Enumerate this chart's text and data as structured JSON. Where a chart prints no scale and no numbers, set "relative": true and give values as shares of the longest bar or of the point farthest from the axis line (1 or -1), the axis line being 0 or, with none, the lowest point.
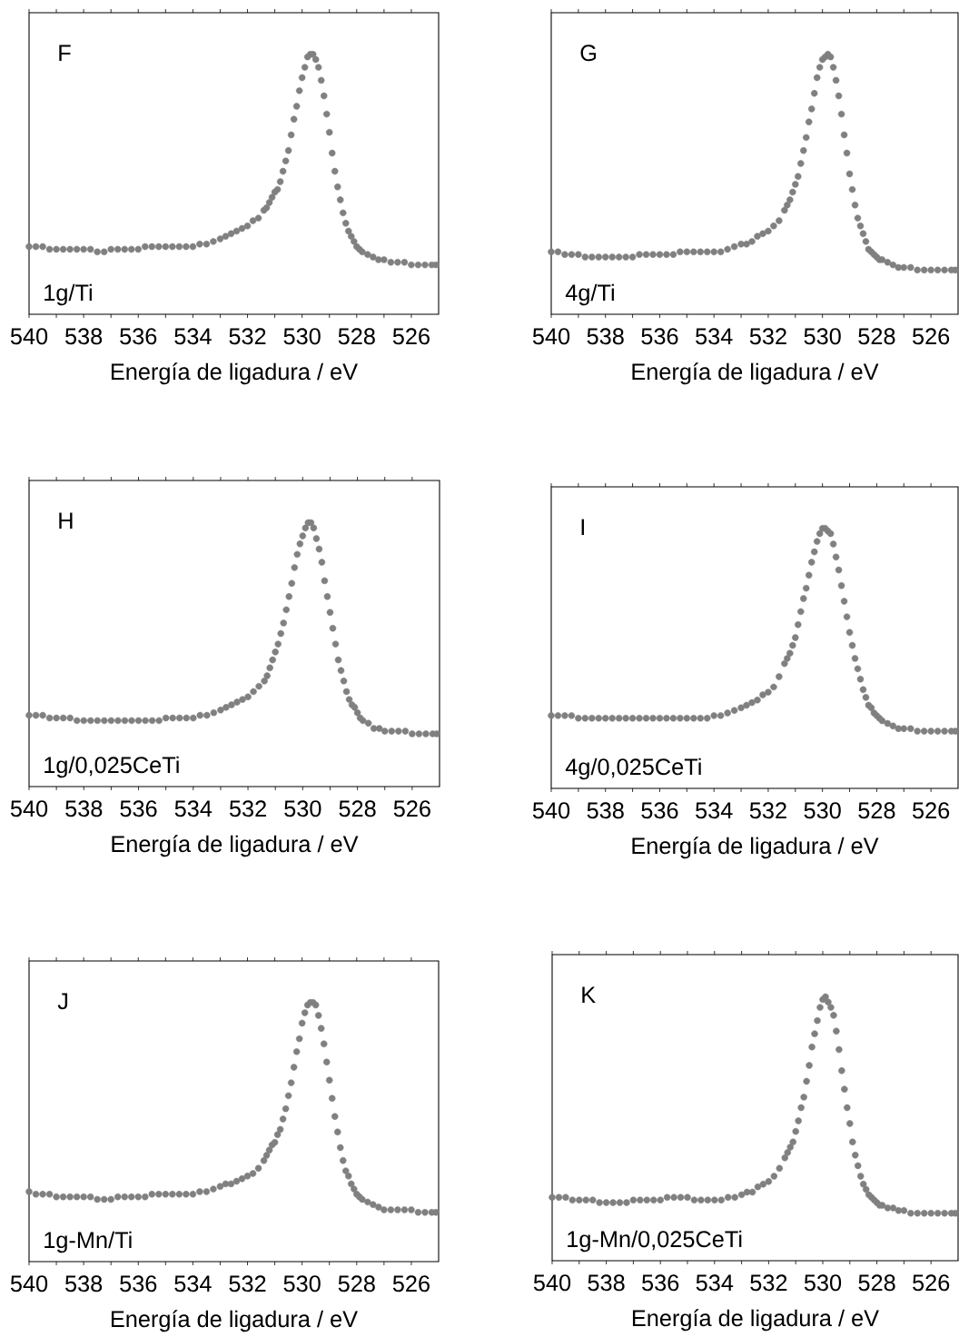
{
  "chart_data": [
    {
      "type": "scatter",
      "title": "F",
      "annotations": [
        "1g/Ti"
      ],
      "xlabel": "Energía de ligadura / eV",
      "relative": true,
      "marker": "circle",
      "color": "#808080",
      "xlim": [
        540,
        525
      ],
      "xticks": [
        540,
        {
          "value": 539,
          "label": null
        },
        538,
        {
          "value": 537,
          "label": null
        },
        536,
        {
          "value": 535,
          "label": null
        },
        534,
        {
          "value": 533,
          "label": null
        },
        532,
        {
          "value": 531,
          "label": null
        },
        530,
        {
          "value": 529,
          "label": null
        },
        528,
        {
          "value": 527,
          "label": null
        },
        526
      ],
      "x": [
        540,
        539.75,
        539.5,
        539.25,
        539,
        538.75,
        538.5,
        538.25,
        538,
        537.75,
        537.5,
        537.25,
        537,
        536.75,
        536.5,
        536.25,
        536,
        535.75,
        535.5,
        535.25,
        535,
        534.75,
        534.5,
        534.25,
        534,
        533.75,
        533.5,
        533.25,
        533,
        532.8,
        532.6,
        532.4,
        532.2,
        532,
        531.8,
        531.6,
        531.4,
        531.3,
        531.2,
        531.1,
        531,
        530.9,
        530.8,
        530.7,
        530.6,
        530.5,
        530.4,
        530.3,
        530.2,
        530.1,
        530,
        529.9,
        529.8,
        529.7,
        529.6,
        529.5,
        529.4,
        529.3,
        529.2,
        529.1,
        529,
        528.9,
        528.8,
        528.7,
        528.6,
        528.5,
        528.4,
        528.3,
        528.2,
        528.1,
        528,
        527.9,
        527.8,
        527.6,
        527.4,
        527.2,
        527,
        526.75,
        526.5,
        526.25,
        526,
        525.75,
        525.5,
        525.25,
        525.1
      ],
      "values": [
        0.26,
        0.26,
        0.26,
        0.25,
        0.25,
        0.25,
        0.25,
        0.25,
        0.25,
        0.25,
        0.24,
        0.24,
        0.25,
        0.25,
        0.25,
        0.25,
        0.25,
        0.26,
        0.26,
        0.26,
        0.26,
        0.26,
        0.26,
        0.26,
        0.26,
        0.27,
        0.27,
        0.28,
        0.29,
        0.3,
        0.31,
        0.32,
        0.33,
        0.34,
        0.36,
        0.37,
        0.4,
        0.41,
        0.43,
        0.45,
        0.47,
        0.48,
        0.51,
        0.55,
        0.59,
        0.63,
        0.69,
        0.75,
        0.8,
        0.86,
        0.91,
        0.95,
        0.99,
        1,
        1,
        0.98,
        0.95,
        0.9,
        0.84,
        0.77,
        0.7,
        0.62,
        0.55,
        0.49,
        0.44,
        0.39,
        0.35,
        0.32,
        0.3,
        0.28,
        0.26,
        0.25,
        0.24,
        0.23,
        0.22,
        0.21,
        0.21,
        0.2,
        0.2,
        0.2,
        0.19,
        0.19,
        0.19,
        0.19,
        0.19
      ]
    },
    {
      "type": "scatter",
      "title": "G",
      "annotations": [
        "4g/Ti"
      ],
      "xlabel": "Energía de ligadura / eV",
      "relative": true,
      "marker": "circle",
      "color": "#808080",
      "xlim": [
        540,
        525
      ],
      "xticks": [
        540,
        {
          "value": 539,
          "label": null
        },
        538,
        {
          "value": 537,
          "label": null
        },
        536,
        {
          "value": 535,
          "label": null
        },
        534,
        {
          "value": 533,
          "label": null
        },
        532,
        {
          "value": 531,
          "label": null
        },
        530,
        {
          "value": 529,
          "label": null
        },
        528,
        {
          "value": 527,
          "label": null
        },
        526
      ],
      "x": [
        540,
        539.75,
        539.5,
        539.25,
        539,
        538.75,
        538.5,
        538.25,
        538,
        537.75,
        537.5,
        537.25,
        537,
        536.75,
        536.5,
        536.25,
        536,
        535.75,
        535.5,
        535.25,
        535,
        534.75,
        534.5,
        534.25,
        534,
        533.75,
        533.5,
        533.25,
        533,
        532.8,
        532.6,
        532.4,
        532.2,
        532,
        531.8,
        531.6,
        531.4,
        531.3,
        531.2,
        531.1,
        531,
        530.9,
        530.8,
        530.7,
        530.6,
        530.5,
        530.4,
        530.3,
        530.2,
        530.1,
        530,
        529.9,
        529.8,
        529.7,
        529.6,
        529.5,
        529.4,
        529.3,
        529.2,
        529.1,
        529,
        528.9,
        528.8,
        528.7,
        528.6,
        528.5,
        528.4,
        528.3,
        528.2,
        528.1,
        528,
        527.9,
        527.8,
        527.6,
        527.4,
        527.2,
        527,
        526.75,
        526.5,
        526.25,
        526,
        525.75,
        525.5,
        525.25,
        525.1
      ],
      "values": [
        0.24,
        0.24,
        0.23,
        0.23,
        0.23,
        0.22,
        0.22,
        0.22,
        0.22,
        0.22,
        0.22,
        0.22,
        0.22,
        0.23,
        0.23,
        0.23,
        0.23,
        0.23,
        0.23,
        0.24,
        0.24,
        0.24,
        0.24,
        0.24,
        0.24,
        0.24,
        0.25,
        0.26,
        0.27,
        0.27,
        0.28,
        0.3,
        0.31,
        0.32,
        0.34,
        0.36,
        0.4,
        0.42,
        0.44,
        0.47,
        0.5,
        0.53,
        0.58,
        0.63,
        0.68,
        0.74,
        0.79,
        0.85,
        0.91,
        0.95,
        0.98,
        0.99,
        1,
        0.99,
        0.95,
        0.9,
        0.84,
        0.77,
        0.69,
        0.62,
        0.54,
        0.48,
        0.42,
        0.37,
        0.34,
        0.31,
        0.28,
        0.25,
        0.24,
        0.23,
        0.22,
        0.21,
        0.21,
        0.2,
        0.19,
        0.18,
        0.18,
        0.18,
        0.17,
        0.17,
        0.17,
        0.17,
        0.17,
        0.17,
        0.17
      ]
    },
    {
      "type": "scatter",
      "title": "H",
      "annotations": [
        "1g/0,025CeTi"
      ],
      "xlabel": "Energía de ligadura / eV",
      "relative": true,
      "marker": "circle",
      "color": "#808080",
      "xlim": [
        540,
        525
      ],
      "xticks": [
        540,
        {
          "value": 539,
          "label": null
        },
        538,
        {
          "value": 537,
          "label": null
        },
        536,
        {
          "value": 535,
          "label": null
        },
        534,
        {
          "value": 533,
          "label": null
        },
        532,
        {
          "value": 531,
          "label": null
        },
        530,
        {
          "value": 529,
          "label": null
        },
        528,
        {
          "value": 527,
          "label": null
        },
        526
      ],
      "x": [
        540,
        539.75,
        539.5,
        539.25,
        539,
        538.75,
        538.5,
        538.25,
        538,
        537.75,
        537.5,
        537.25,
        537,
        536.75,
        536.5,
        536.25,
        536,
        535.75,
        535.5,
        535.25,
        535,
        534.75,
        534.5,
        534.25,
        534,
        533.75,
        533.5,
        533.25,
        533,
        532.8,
        532.6,
        532.4,
        532.2,
        532,
        531.8,
        531.6,
        531.4,
        531.3,
        531.2,
        531.1,
        531,
        530.9,
        530.8,
        530.7,
        530.6,
        530.5,
        530.4,
        530.3,
        530.2,
        530.1,
        530,
        529.9,
        529.8,
        529.7,
        529.6,
        529.5,
        529.4,
        529.3,
        529.2,
        529.1,
        529,
        528.9,
        528.8,
        528.7,
        528.6,
        528.5,
        528.4,
        528.3,
        528.2,
        528.1,
        528,
        527.9,
        527.8,
        527.6,
        527.4,
        527.2,
        527,
        526.75,
        526.5,
        526.25,
        526,
        525.75,
        525.5,
        525.25,
        525.1
      ],
      "values": [
        0.27,
        0.27,
        0.27,
        0.26,
        0.26,
        0.26,
        0.26,
        0.25,
        0.25,
        0.25,
        0.25,
        0.25,
        0.25,
        0.25,
        0.25,
        0.25,
        0.25,
        0.25,
        0.25,
        0.25,
        0.26,
        0.26,
        0.26,
        0.26,
        0.26,
        0.27,
        0.27,
        0.28,
        0.29,
        0.3,
        0.31,
        0.32,
        0.33,
        0.34,
        0.36,
        0.38,
        0.4,
        0.42,
        0.45,
        0.48,
        0.51,
        0.54,
        0.58,
        0.62,
        0.67,
        0.72,
        0.77,
        0.83,
        0.88,
        0.92,
        0.95,
        0.98,
        1,
        1,
        0.98,
        0.94,
        0.9,
        0.85,
        0.78,
        0.72,
        0.66,
        0.6,
        0.54,
        0.48,
        0.44,
        0.4,
        0.36,
        0.33,
        0.31,
        0.3,
        0.28,
        0.26,
        0.25,
        0.24,
        0.22,
        0.22,
        0.21,
        0.21,
        0.21,
        0.21,
        0.2,
        0.2,
        0.2,
        0.2,
        0.2
      ]
    },
    {
      "type": "scatter",
      "title": "I",
      "annotations": [
        "4g/0,025CeTi"
      ],
      "xlabel": "Energía de ligadura / eV",
      "relative": true,
      "marker": "circle",
      "color": "#808080",
      "xlim": [
        540,
        525
      ],
      "xticks": [
        540,
        {
          "value": 539,
          "label": null
        },
        538,
        {
          "value": 537,
          "label": null
        },
        536,
        {
          "value": 535,
          "label": null
        },
        534,
        {
          "value": 533,
          "label": null
        },
        532,
        {
          "value": 531,
          "label": null
        },
        530,
        {
          "value": 529,
          "label": null
        },
        528,
        {
          "value": 527,
          "label": null
        },
        526
      ],
      "x": [
        540,
        539.75,
        539.5,
        539.25,
        539,
        538.75,
        538.5,
        538.25,
        538,
        537.75,
        537.5,
        537.25,
        537,
        536.75,
        536.5,
        536.25,
        536,
        535.75,
        535.5,
        535.25,
        535,
        534.75,
        534.5,
        534.25,
        534,
        533.75,
        533.5,
        533.25,
        533,
        532.8,
        532.6,
        532.4,
        532.2,
        532,
        531.8,
        531.6,
        531.4,
        531.3,
        531.2,
        531.1,
        531,
        530.9,
        530.8,
        530.7,
        530.6,
        530.5,
        530.4,
        530.3,
        530.2,
        530.1,
        530,
        529.9,
        529.8,
        529.7,
        529.6,
        529.5,
        529.4,
        529.3,
        529.2,
        529.1,
        529,
        528.9,
        528.8,
        528.7,
        528.6,
        528.5,
        528.4,
        528.3,
        528.2,
        528.1,
        528,
        527.9,
        527.8,
        527.6,
        527.4,
        527.2,
        527,
        526.75,
        526.5,
        526.25,
        526,
        525.75,
        525.5,
        525.25,
        525.1
      ],
      "values": [
        0.28,
        0.28,
        0.28,
        0.28,
        0.27,
        0.27,
        0.27,
        0.27,
        0.27,
        0.27,
        0.27,
        0.27,
        0.27,
        0.27,
        0.27,
        0.27,
        0.27,
        0.27,
        0.27,
        0.27,
        0.27,
        0.27,
        0.27,
        0.27,
        0.28,
        0.28,
        0.29,
        0.3,
        0.31,
        0.32,
        0.33,
        0.34,
        0.36,
        0.37,
        0.39,
        0.43,
        0.48,
        0.5,
        0.52,
        0.55,
        0.58,
        0.63,
        0.68,
        0.73,
        0.77,
        0.82,
        0.87,
        0.91,
        0.95,
        0.98,
        1,
        1,
        0.99,
        0.98,
        0.94,
        0.89,
        0.84,
        0.78,
        0.72,
        0.66,
        0.6,
        0.55,
        0.5,
        0.46,
        0.42,
        0.38,
        0.35,
        0.32,
        0.31,
        0.29,
        0.28,
        0.27,
        0.26,
        0.25,
        0.24,
        0.23,
        0.23,
        0.23,
        0.22,
        0.22,
        0.22,
        0.22,
        0.22,
        0.22,
        0.22
      ]
    },
    {
      "type": "scatter",
      "title": "J",
      "annotations": [
        "1g-Mn/Ti"
      ],
      "xlabel": "Energía de ligadura / eV",
      "relative": true,
      "marker": "circle",
      "color": "#808080",
      "xlim": [
        540,
        525
      ],
      "xticks": [
        540,
        {
          "value": 539,
          "label": null
        },
        538,
        {
          "value": 537,
          "label": null
        },
        536,
        {
          "value": 535,
          "label": null
        },
        534,
        {
          "value": 533,
          "label": null
        },
        532,
        {
          "value": 531,
          "label": null
        },
        530,
        {
          "value": 529,
          "label": null
        },
        528,
        {
          "value": 527,
          "label": null
        },
        526
      ],
      "x": [
        540,
        539.75,
        539.5,
        539.25,
        539,
        538.75,
        538.5,
        538.25,
        538,
        537.75,
        537.5,
        537.25,
        537,
        536.75,
        536.5,
        536.25,
        536,
        535.75,
        535.5,
        535.25,
        535,
        534.75,
        534.5,
        534.25,
        534,
        533.75,
        533.5,
        533.25,
        533,
        532.8,
        532.6,
        532.4,
        532.2,
        532,
        531.8,
        531.6,
        531.4,
        531.3,
        531.2,
        531.1,
        531,
        530.9,
        530.8,
        530.7,
        530.6,
        530.5,
        530.4,
        530.3,
        530.2,
        530.1,
        530,
        529.9,
        529.8,
        529.7,
        529.6,
        529.5,
        529.4,
        529.3,
        529.2,
        529.1,
        529,
        528.9,
        528.8,
        528.7,
        528.6,
        528.5,
        528.4,
        528.3,
        528.2,
        528.1,
        528,
        527.9,
        527.8,
        527.6,
        527.4,
        527.2,
        527,
        526.75,
        526.5,
        526.25,
        526,
        525.75,
        525.5,
        525.25,
        525.1
      ],
      "values": [
        0.27,
        0.26,
        0.26,
        0.26,
        0.25,
        0.25,
        0.25,
        0.25,
        0.25,
        0.25,
        0.24,
        0.24,
        0.24,
        0.25,
        0.25,
        0.25,
        0.25,
        0.25,
        0.26,
        0.26,
        0.26,
        0.26,
        0.26,
        0.26,
        0.26,
        0.27,
        0.27,
        0.28,
        0.29,
        0.3,
        0.3,
        0.31,
        0.32,
        0.33,
        0.34,
        0.36,
        0.39,
        0.41,
        0.43,
        0.45,
        0.46,
        0.49,
        0.51,
        0.55,
        0.59,
        0.64,
        0.69,
        0.75,
        0.81,
        0.86,
        0.92,
        0.96,
        0.99,
        1,
        1,
        0.99,
        0.95,
        0.9,
        0.84,
        0.77,
        0.7,
        0.63,
        0.56,
        0.5,
        0.44,
        0.39,
        0.35,
        0.33,
        0.3,
        0.28,
        0.26,
        0.25,
        0.24,
        0.23,
        0.22,
        0.21,
        0.2,
        0.2,
        0.2,
        0.2,
        0.2,
        0.19,
        0.19,
        0.19,
        0.19
      ]
    },
    {
      "type": "scatter",
      "title": "K",
      "annotations": [
        "1g-Mn/0,025CeTi"
      ],
      "xlabel": "Energía de ligadura / eV",
      "relative": true,
      "marker": "circle",
      "color": "#808080",
      "xlim": [
        540,
        525
      ],
      "xticks": [
        540,
        {
          "value": 539,
          "label": null
        },
        538,
        {
          "value": 537,
          "label": null
        },
        536,
        {
          "value": 535,
          "label": null
        },
        534,
        {
          "value": 533,
          "label": null
        },
        532,
        {
          "value": 531,
          "label": null
        },
        530,
        {
          "value": 529,
          "label": null
        },
        528,
        {
          "value": 527,
          "label": null
        },
        526
      ],
      "x": [
        540,
        539.75,
        539.5,
        539.25,
        539,
        538.75,
        538.5,
        538.25,
        538,
        537.75,
        537.5,
        537.25,
        537,
        536.75,
        536.5,
        536.25,
        536,
        535.75,
        535.5,
        535.25,
        535,
        534.75,
        534.5,
        534.25,
        534,
        533.75,
        533.5,
        533.25,
        533,
        532.8,
        532.6,
        532.4,
        532.2,
        532,
        531.8,
        531.6,
        531.4,
        531.3,
        531.2,
        531.1,
        531,
        530.9,
        530.8,
        530.7,
        530.6,
        530.5,
        530.4,
        530.3,
        530.2,
        530.1,
        530,
        529.9,
        529.8,
        529.7,
        529.6,
        529.5,
        529.4,
        529.3,
        529.2,
        529.1,
        529,
        528.9,
        528.8,
        528.7,
        528.6,
        528.5,
        528.4,
        528.3,
        528.2,
        528.1,
        528,
        527.9,
        527.8,
        527.6,
        527.4,
        527.2,
        527,
        526.75,
        526.5,
        526.25,
        526,
        525.75,
        525.5,
        525.25,
        525.1
      ],
      "values": [
        0.24,
        0.24,
        0.24,
        0.23,
        0.23,
        0.23,
        0.23,
        0.22,
        0.22,
        0.22,
        0.22,
        0.22,
        0.23,
        0.23,
        0.23,
        0.23,
        0.23,
        0.24,
        0.24,
        0.24,
        0.24,
        0.23,
        0.23,
        0.23,
        0.23,
        0.23,
        0.24,
        0.24,
        0.25,
        0.26,
        0.26,
        0.28,
        0.29,
        0.3,
        0.32,
        0.35,
        0.39,
        0.41,
        0.43,
        0.45,
        0.49,
        0.53,
        0.58,
        0.62,
        0.68,
        0.74,
        0.81,
        0.86,
        0.91,
        0.96,
        0.99,
        1,
        0.98,
        0.96,
        0.93,
        0.87,
        0.8,
        0.72,
        0.65,
        0.58,
        0.52,
        0.45,
        0.4,
        0.36,
        0.32,
        0.29,
        0.27,
        0.25,
        0.24,
        0.23,
        0.22,
        0.21,
        0.21,
        0.2,
        0.2,
        0.19,
        0.19,
        0.18,
        0.18,
        0.18,
        0.18,
        0.18,
        0.18,
        0.18,
        0.18
      ]
    }
  ]
}
